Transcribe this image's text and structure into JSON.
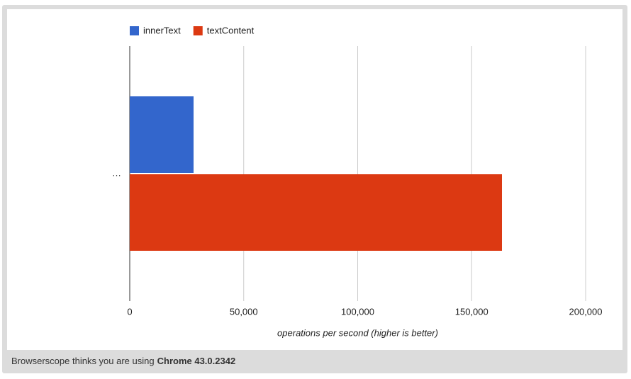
{
  "chart_data": {
    "type": "bar",
    "orientation": "horizontal",
    "categories": [
      "…"
    ],
    "series": [
      {
        "name": "innerText",
        "color": "#3366cc",
        "values": [
          28000
        ]
      },
      {
        "name": "textContent",
        "color": "#dc3912",
        "values": [
          163300
        ]
      }
    ],
    "xlim": [
      0,
      200000
    ],
    "xticks": [
      0,
      {
        "value": 50000,
        "label": "50,000"
      },
      {
        "value": 100000,
        "label": "100,000"
      },
      {
        "value": 150000,
        "label": "150,000"
      },
      {
        "value": 200000,
        "label": "200,000"
      }
    ],
    "x_label": "operations per second (higher is better)",
    "grid": true,
    "legend": "top"
  },
  "footer": {
    "prefix": "Browserscope thinks you are using",
    "browser": "Chrome 43.0.2342"
  }
}
